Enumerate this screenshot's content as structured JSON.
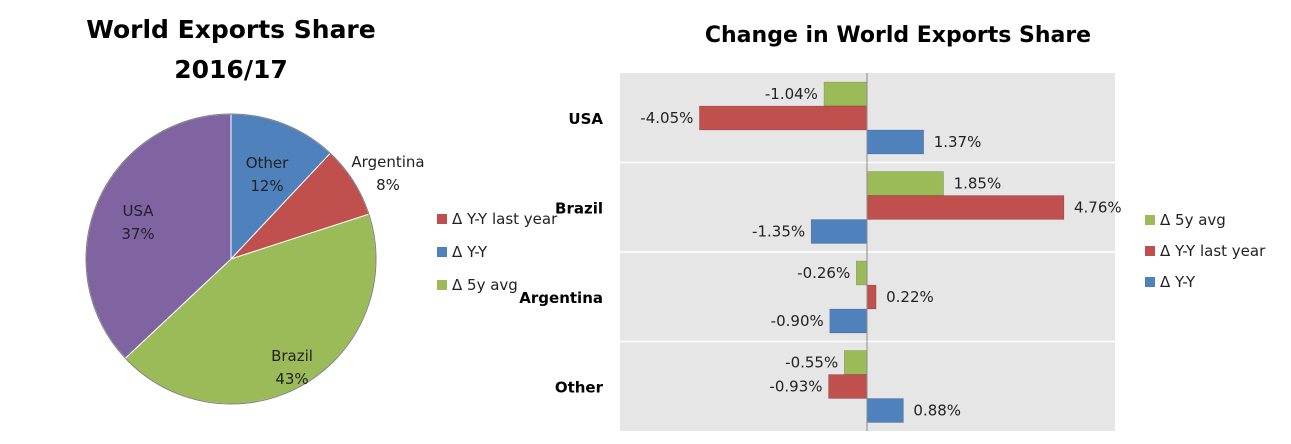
{
  "chart_data": [
    {
      "type": "pie",
      "title_lines": [
        "World Exports Share",
        "2016/17"
      ],
      "slices": [
        {
          "label": "Other",
          "value": 12,
          "display": "12%",
          "color": "#4F81BD"
        },
        {
          "label": "Argentina",
          "value": 8,
          "display": "8%",
          "color": "#C0504D"
        },
        {
          "label": "Brazil",
          "value": 43,
          "display": "43%",
          "color": "#9BBB59"
        },
        {
          "label": "USA",
          "value": 37,
          "display": "37%",
          "color": "#8064A2"
        }
      ],
      "legend": [
        {
          "label": "Δ Y-Y last year",
          "color": "#C0504D"
        },
        {
          "label": "Δ Y-Y",
          "color": "#4F81BD"
        },
        {
          "label": "Δ 5y avg",
          "color": "#9BBB59"
        }
      ],
      "legend_position": "right"
    },
    {
      "type": "bar",
      "orientation": "horizontal",
      "title": "Change in World Exports Share",
      "categories": [
        "USA",
        "Brazil",
        "Argentina",
        "Other"
      ],
      "series": [
        {
          "name": "Δ 5y avg",
          "color": "#9BBB59",
          "values": [
            -1.04,
            1.85,
            -0.26,
            -0.55
          ],
          "labels": [
            "-1.04%",
            "1.85%",
            "-0.26%",
            "-0.55%"
          ]
        },
        {
          "name": "Δ Y-Y last year",
          "color": "#C0504D",
          "values": [
            -4.05,
            4.76,
            0.22,
            -0.93
          ],
          "labels": [
            "-4.05%",
            "4.76%",
            "0.22%",
            "-0.93%"
          ]
        },
        {
          "name": "Δ Y-Y",
          "color": "#4F81BD",
          "values": [
            1.37,
            -1.35,
            -0.9,
            0.88
          ],
          "labels": [
            "1.37%",
            "-1.35%",
            "-0.90%",
            "0.88%"
          ]
        }
      ],
      "xlim": [
        -6,
        6
      ],
      "grid": true,
      "plot_background": "#E6E6E6",
      "legend_position": "right"
    }
  ]
}
